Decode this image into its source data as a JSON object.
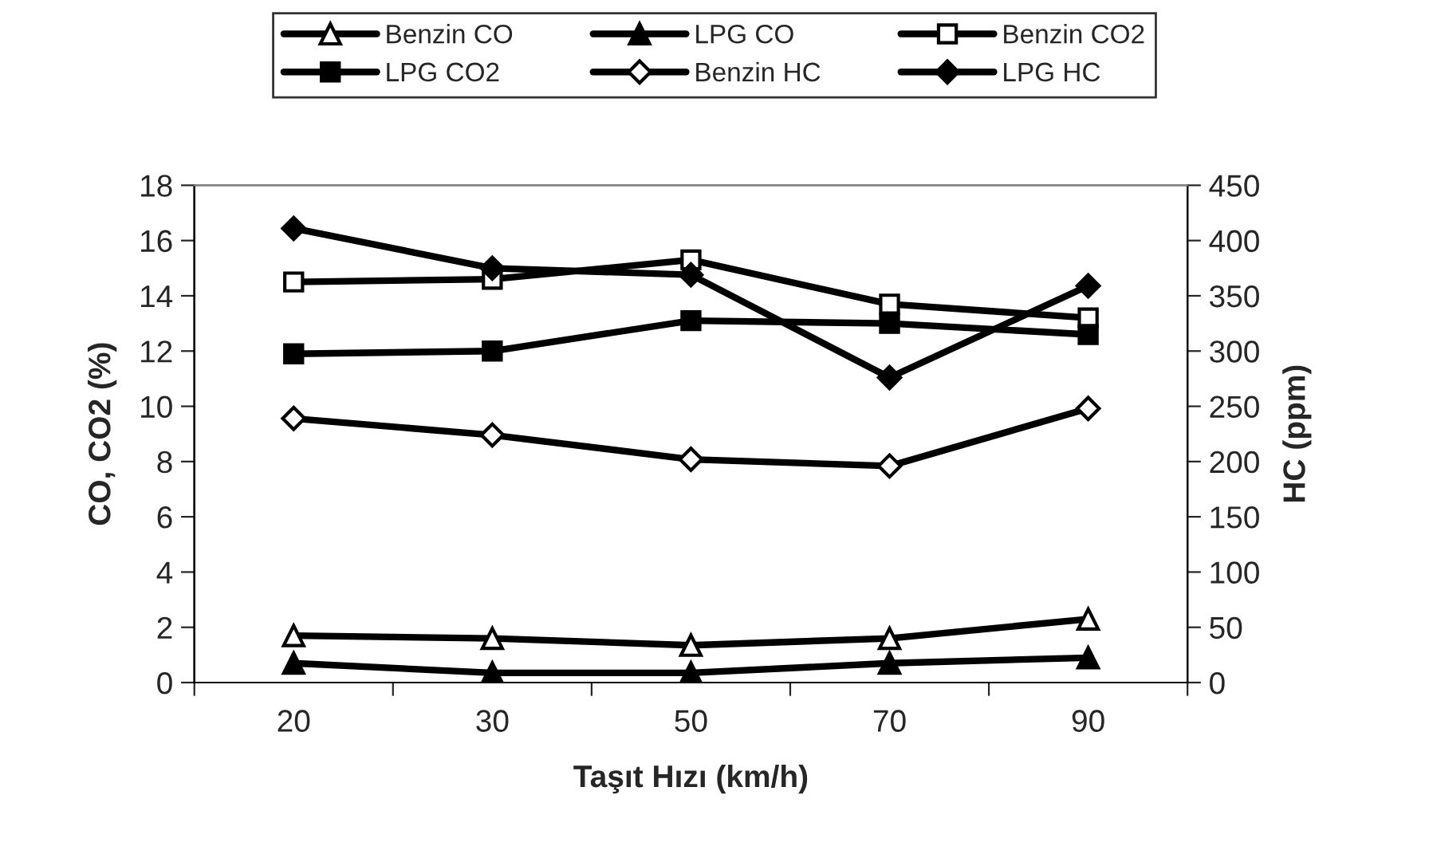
{
  "chart_data": {
    "type": "line",
    "xlabel": "Taşıt Hızı (km/h)",
    "ylabel": "CO, CO2 (%)",
    "y2label": "HC (ppm)",
    "categories": [
      "20",
      "30",
      "50",
      "70",
      "90"
    ],
    "series": [
      {
        "name": "Benzin CO",
        "color": "#000000",
        "marker": "triangle",
        "values": [
          1.7,
          1.6,
          1.35,
          1.6,
          2.3
        ]
      },
      {
        "name": "LPG CO",
        "color": "#000000",
        "marker": "triangle",
        "values": [
          0.7,
          0.35,
          0.35,
          0.7,
          0.9
        ]
      },
      {
        "name": "Benzin CO2",
        "color": "#000000",
        "marker": "square",
        "values": [
          14.5,
          14.6,
          15.3,
          13.7,
          13.2
        ]
      },
      {
        "name": "LPG CO2",
        "color": "#000000",
        "marker": "square",
        "values": [
          11.9,
          12.0,
          13.1,
          13.0,
          12.6
        ]
      },
      {
        "name": "Benzin HC",
        "color": "#000000",
        "marker": "diamond",
        "axis": "y2",
        "values": [
          239,
          224,
          202,
          196,
          248
        ]
      },
      {
        "name": "LPG HC",
        "color": "#000000",
        "marker": "diamond",
        "axis": "y2",
        "values": [
          411,
          375,
          369,
          276,
          359
        ]
      }
    ],
    "ylim": [
      0,
      18
    ],
    "yticks": [
      0,
      2,
      4,
      6,
      8,
      10,
      12,
      14,
      16,
      18
    ],
    "y2lim": [
      0,
      450
    ],
    "y2ticks": [
      0,
      50,
      100,
      150,
      200,
      250,
      300,
      350,
      400,
      450
    ],
    "grid": false,
    "legend": "top",
    "line_style": "solid"
  }
}
